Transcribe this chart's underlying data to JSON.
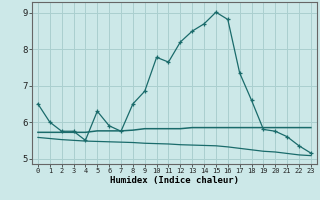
{
  "xlabel": "Humidex (Indice chaleur)",
  "background_color": "#cce8e8",
  "grid_color": "#aacfcf",
  "line_color": "#1a6b6b",
  "xlim": [
    -0.5,
    23.5
  ],
  "ylim": [
    4.85,
    9.3
  ],
  "xticks": [
    0,
    1,
    2,
    3,
    4,
    5,
    6,
    7,
    8,
    9,
    10,
    11,
    12,
    13,
    14,
    15,
    16,
    17,
    18,
    19,
    20,
    21,
    22,
    23
  ],
  "yticks": [
    5,
    6,
    7,
    8,
    9
  ],
  "series1_x": [
    0,
    1,
    2,
    3,
    4,
    5,
    6,
    7,
    8,
    9,
    10,
    11,
    12,
    13,
    14,
    15,
    16,
    17,
    18,
    19,
    20,
    21,
    22,
    23
  ],
  "series1_y": [
    6.5,
    6.0,
    5.75,
    5.75,
    5.5,
    6.3,
    5.9,
    5.75,
    6.5,
    6.85,
    7.78,
    7.65,
    8.2,
    8.5,
    8.7,
    9.02,
    8.82,
    7.35,
    6.6,
    5.8,
    5.75,
    5.6,
    5.35,
    5.15
  ],
  "series2_x": [
    0,
    1,
    2,
    3,
    4,
    5,
    6,
    7,
    8,
    9,
    10,
    11,
    12,
    13,
    14,
    15,
    16,
    17,
    18,
    19,
    20,
    21,
    22,
    23
  ],
  "series2_y": [
    5.72,
    5.72,
    5.72,
    5.72,
    5.72,
    5.76,
    5.76,
    5.76,
    5.78,
    5.82,
    5.82,
    5.82,
    5.82,
    5.85,
    5.85,
    5.85,
    5.85,
    5.85,
    5.85,
    5.85,
    5.85,
    5.85,
    5.85,
    5.85
  ],
  "series3_x": [
    0,
    1,
    2,
    3,
    4,
    5,
    6,
    7,
    8,
    9,
    10,
    11,
    12,
    13,
    14,
    15,
    16,
    17,
    18,
    19,
    20,
    21,
    22,
    23
  ],
  "series3_y": [
    5.58,
    5.55,
    5.52,
    5.5,
    5.48,
    5.47,
    5.46,
    5.45,
    5.44,
    5.42,
    5.41,
    5.4,
    5.38,
    5.37,
    5.36,
    5.35,
    5.32,
    5.28,
    5.24,
    5.2,
    5.18,
    5.14,
    5.1,
    5.08
  ]
}
